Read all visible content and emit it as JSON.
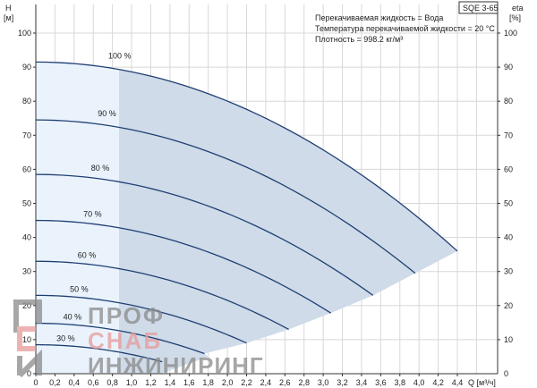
{
  "chart_data": {
    "type": "line",
    "title": "SQE 3-65",
    "xlabel": "Q [м³/ч]",
    "ylabel": "H [м]",
    "y2label_top": "eta",
    "y2label_unit": "[%]",
    "ylabel_top": "H",
    "ylabel_unit": "[м]",
    "xlim": [
      0,
      4.6
    ],
    "ylim": [
      0,
      108
    ],
    "x_ticks": [
      "0",
      "0,2",
      "0,4",
      "0,6",
      "0,8",
      "1,0",
      "1,2",
      "1,4",
      "1,6",
      "1,8",
      "2,0",
      "2,2",
      "2,4",
      "2,6",
      "2,8",
      "3,0",
      "3,2",
      "3,4",
      "3,6",
      "3,8",
      "4,0",
      "4,2",
      "4,4"
    ],
    "y_ticks": [
      "0",
      "10",
      "20",
      "30",
      "40",
      "50",
      "60",
      "70",
      "80",
      "90",
      "100"
    ],
    "y2_ticks": [
      "10",
      "20",
      "30",
      "40",
      "50",
      "60",
      "70",
      "80",
      "90",
      "100"
    ],
    "grid": true,
    "info": [
      "Перекачиваемая жидкость = Вода",
      "Температура перекачиваемой жидкости = 20 °C",
      "Плотность = 998.2 кг/м³"
    ],
    "series": [
      {
        "name": "100 %",
        "speed": 1.0,
        "shutoff_head": 91.5,
        "q_end": 4.4,
        "h_end": 36
      },
      {
        "name": "90 %",
        "speed": 0.9,
        "shutoff_head": 74.5,
        "q_end": 3.96,
        "h_end": 29.5
      },
      {
        "name": "80 %",
        "speed": 0.8,
        "shutoff_head": 58.5,
        "q_end": 3.52,
        "h_end": 23
      },
      {
        "name": "70 %",
        "speed": 0.7,
        "shutoff_head": 45,
        "q_end": 3.08,
        "h_end": 17.8
      },
      {
        "name": "60 %",
        "speed": 0.6,
        "shutoff_head": 33,
        "q_end": 2.64,
        "h_end": 13
      },
      {
        "name": "50 %",
        "speed": 0.5,
        "shutoff_head": 23,
        "q_end": 2.2,
        "h_end": 9
      },
      {
        "name": "40 %",
        "speed": 0.4,
        "shutoff_head": 14.8,
        "q_end": 1.76,
        "h_end": 5.9
      },
      {
        "name": "30 %",
        "speed": 0.3,
        "shutoff_head": 8.5,
        "q_end": 1.32,
        "h_end": 3.5
      }
    ],
    "light_region_q_max": 0.87,
    "colors": {
      "curve": "#1f3f73",
      "light_fill": "#eaf3fc",
      "dark_fill": "#cfdbe8",
      "grid": "#d8d8d8"
    }
  },
  "logo": {
    "line1": "ПРОФ",
    "line2": "СНАБ",
    "line3": "ИНЖИНИРИНГ"
  }
}
